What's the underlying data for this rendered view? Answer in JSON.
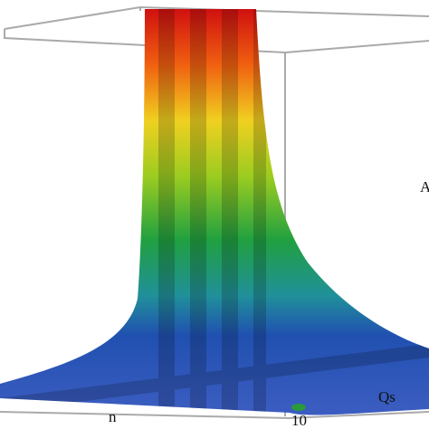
{
  "chart_data": {
    "type": "surface",
    "x_label": "n",
    "y_label": "Qs",
    "z_label": "A",
    "y_ticks": [
      10
    ]
  }
}
